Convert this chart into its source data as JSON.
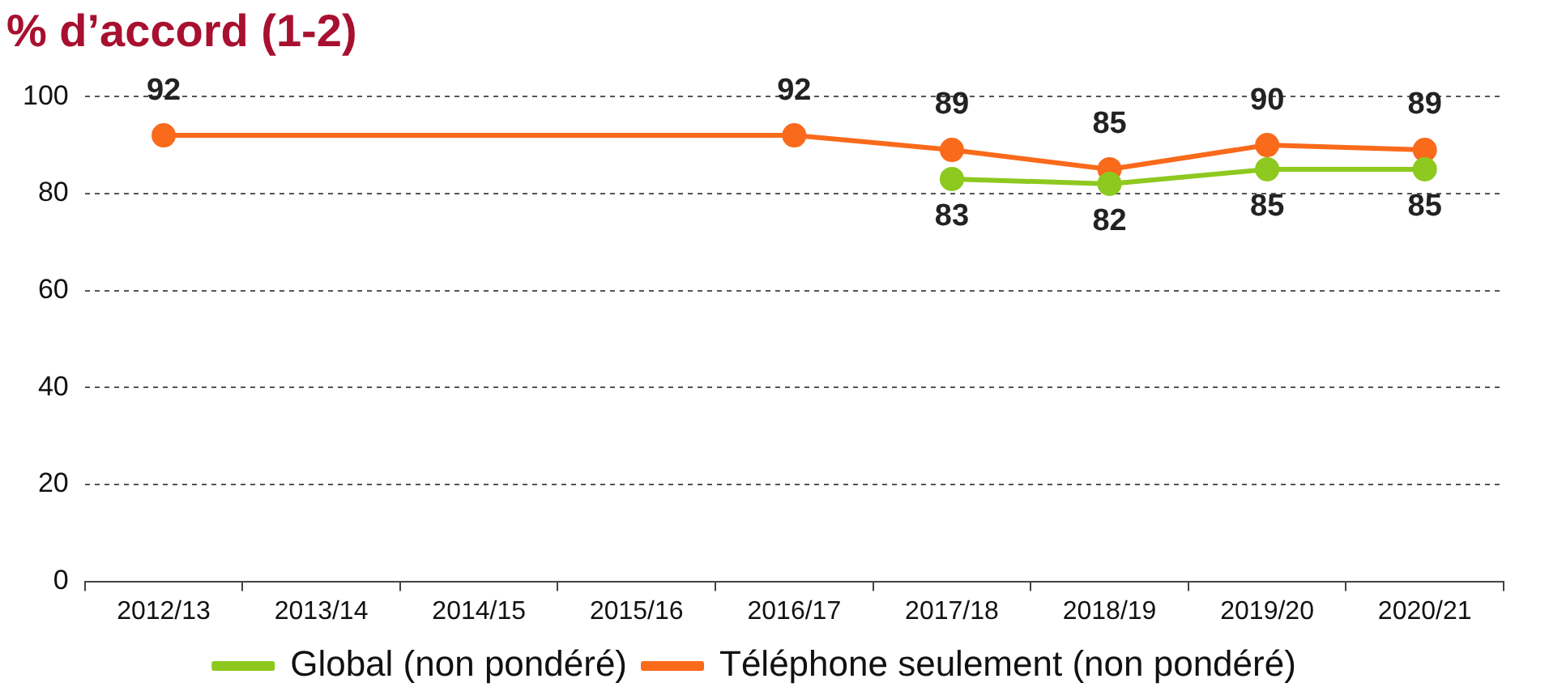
{
  "chart_data": {
    "type": "line",
    "title": "% d’accord (1-2)",
    "categories": [
      "2012/13",
      "2013/14",
      "2014/15",
      "2015/16",
      "2016/17",
      "2017/18",
      "2018/19",
      "2019/20",
      "2020/21"
    ],
    "series": [
      {
        "name": "Global (non pondéré)",
        "color": "#8dc91f",
        "values": [
          null,
          null,
          null,
          null,
          null,
          83,
          82,
          85,
          85
        ]
      },
      {
        "name": "Téléphone seulement (non pondéré)",
        "color": "#f96a1b",
        "values": [
          92,
          null,
          null,
          null,
          92,
          89,
          85,
          90,
          89
        ]
      }
    ],
    "ylim": [
      0,
      100
    ],
    "yticks": [
      0,
      20,
      40,
      60,
      80,
      100
    ],
    "grid": "y",
    "legend": "bottom",
    "marker": "circle",
    "line_style": "solid",
    "data_labels": true
  }
}
